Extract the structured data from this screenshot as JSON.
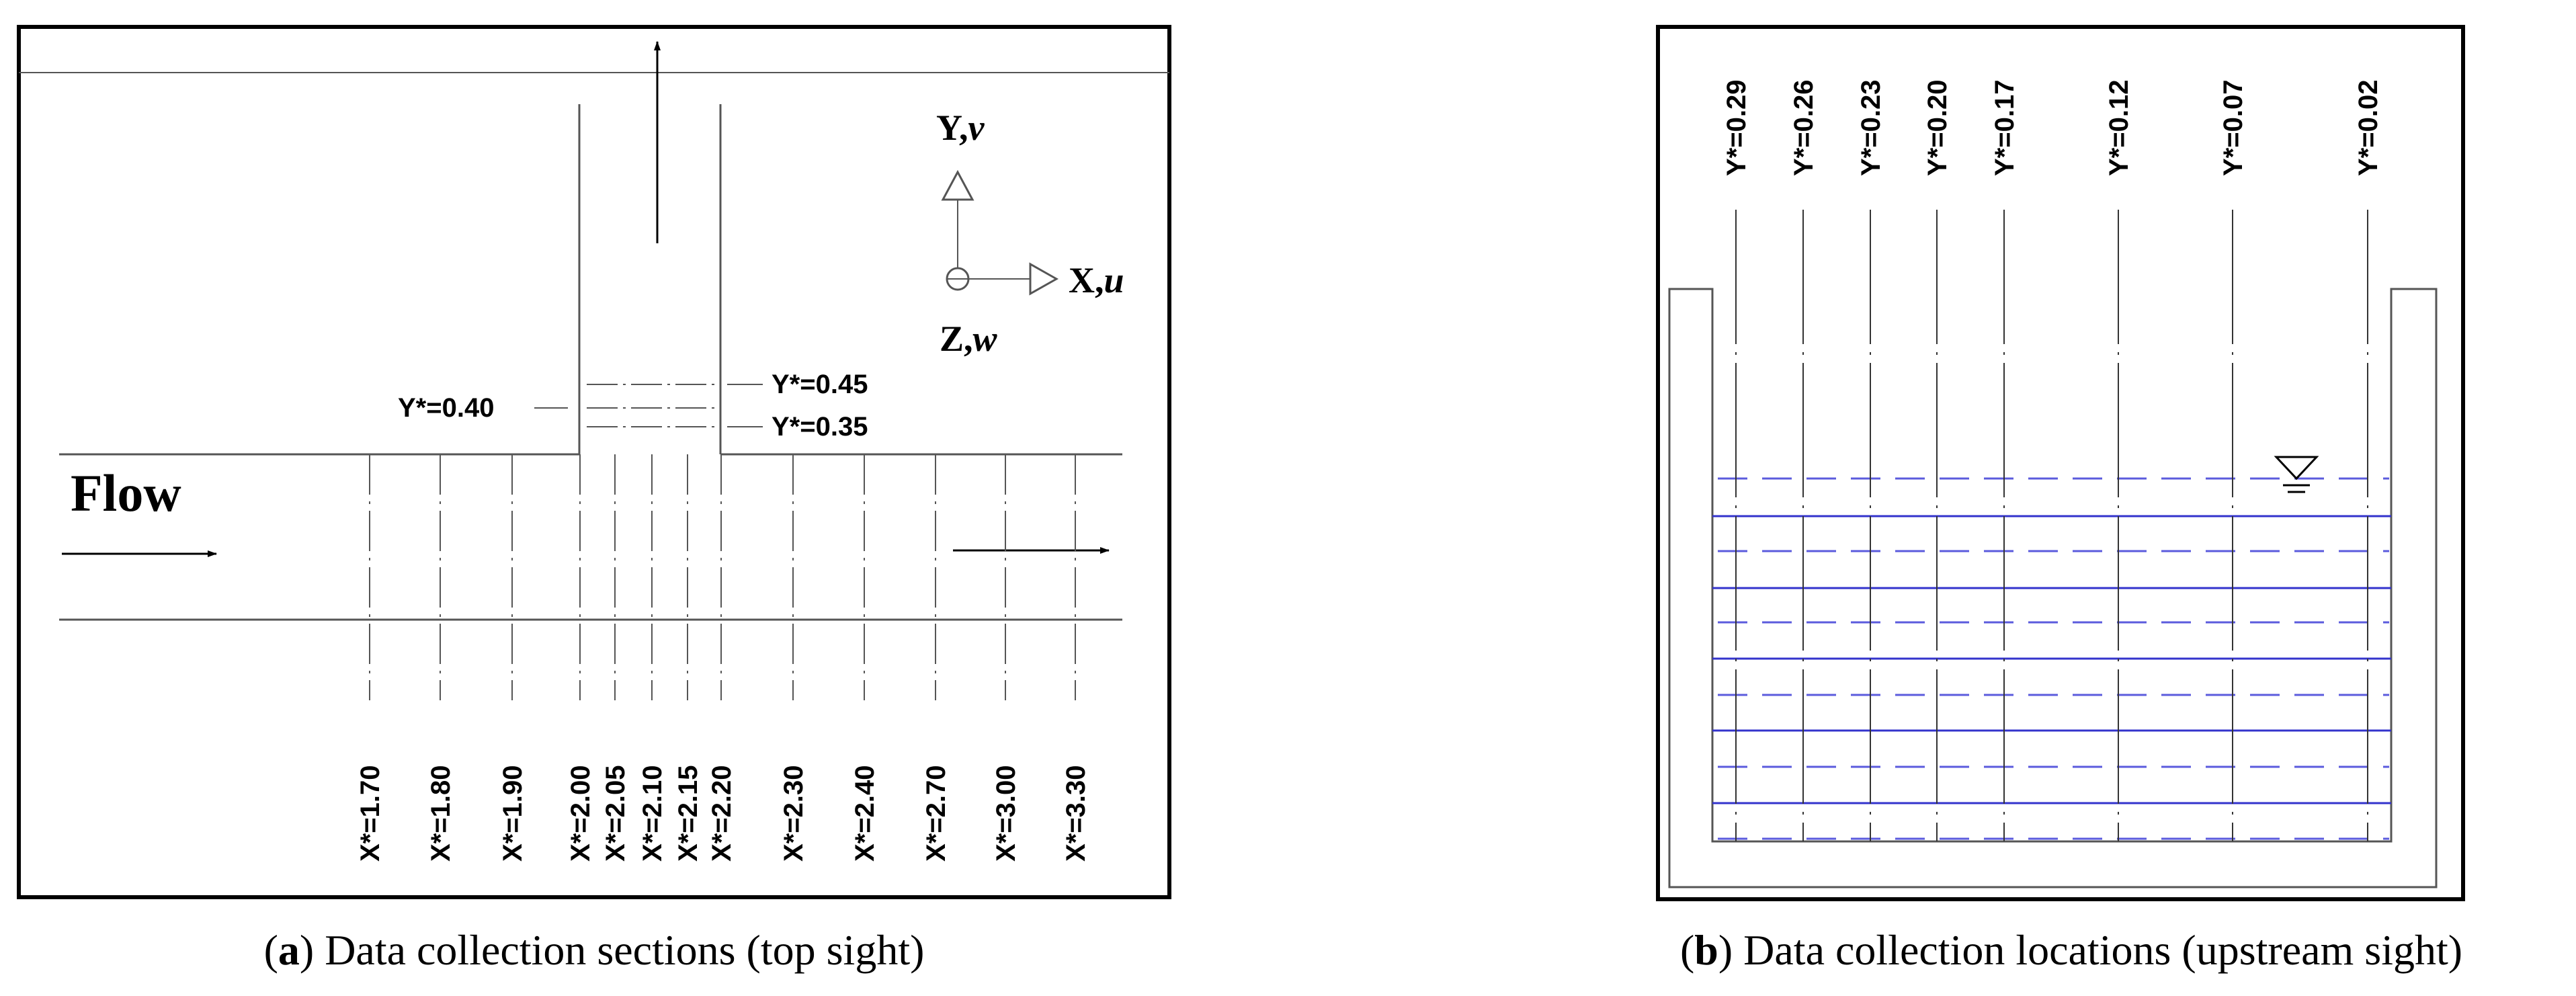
{
  "panel_a": {
    "flow_label": "Flow",
    "axes": {
      "y_label": "Y,",
      "y_var": "v",
      "x_label": "X,",
      "x_var": "u",
      "z_label": "Z,",
      "z_var": "w"
    },
    "branch_sections": {
      "left": "Y*=0.40",
      "right_top": "Y*=0.45",
      "right_bottom": "Y*=0.35"
    },
    "x_sections": [
      "X*=1.70",
      "X*=1.80",
      "X*=1.90",
      "X*=2.00",
      "X*=2.05",
      "X*=2.10",
      "X*=2.15",
      "X*=2.20",
      "X*=2.30",
      "X*=2.40",
      "X*=2.70",
      "X*=3.00",
      "X*=3.30"
    ],
    "caption_letter": "a",
    "caption_text": " Data collection sections (top sight)"
  },
  "panel_b": {
    "y_sections": [
      "Y*=0.29",
      "Y*=0.26",
      "Y*=0.23",
      "Y*=0.20",
      "Y*=0.17",
      "Y*=0.12",
      "Y*=0.07",
      "Y*=0.02"
    ],
    "caption_letter": "b",
    "caption_text": " Data collection locations (upstream sight)"
  },
  "colors": {
    "line": "#000000",
    "gray": "#555555",
    "blue": "#3333cc",
    "blue_dash": "#5b5bdd"
  }
}
